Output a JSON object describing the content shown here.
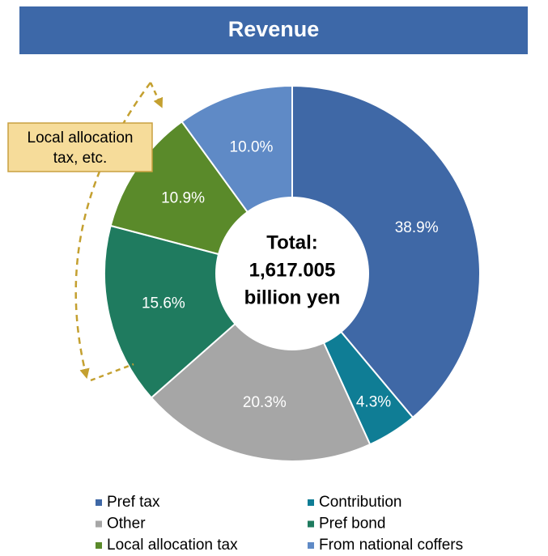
{
  "chart_data": {
    "type": "donut",
    "title": "Revenue",
    "categories": [
      "Pref tax",
      "Contribution",
      "Other",
      "Pref bond",
      "Local allocation tax",
      "From national coffers"
    ],
    "values": [
      38.9,
      4.3,
      20.3,
      15.6,
      10.9,
      10.0
    ],
    "value_labels": [
      "38.9%",
      "4.3%",
      "20.3%",
      "15.6%",
      "10.9%",
      "10.0%"
    ],
    "colors": [
      "#3f68a6",
      "#0f7d95",
      "#a6a6a6",
      "#1f7b5f",
      "#5a8a2a",
      "#5f8ac6"
    ],
    "center_label": [
      "Total:",
      "1,617.005",
      "billion yen"
    ],
    "annotation": [
      "Local allocation",
      "tax, etc."
    ]
  }
}
